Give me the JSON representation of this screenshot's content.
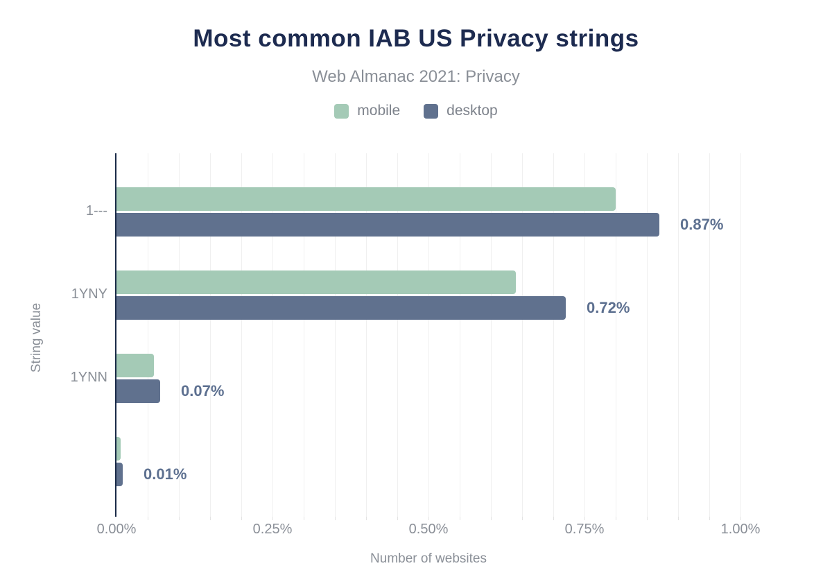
{
  "header": {
    "title": "Most common IAB US Privacy strings",
    "subtitle": "Web Almanac 2021: Privacy"
  },
  "colors": {
    "title_text": "#1d2b50",
    "muted_text": "#8a8f97",
    "legend_text": "#7e838c",
    "data_label_text": "#5d7090",
    "axis_line": "#1a2a47",
    "gridline": "#f0f0f0",
    "tickmark": "#e3e3e3",
    "mobile": "#a4cab6",
    "desktop": "#60718e"
  },
  "chart_data": {
    "type": "bar",
    "orientation": "horizontal",
    "title": "Most common IAB US Privacy strings",
    "subtitle": "Web Almanac 2021: Privacy",
    "categories": [
      "1---",
      "1YNY",
      "1YNN",
      ""
    ],
    "series": [
      {
        "name": "mobile",
        "color": "#a4cab6",
        "values": [
          0.8,
          0.64,
          0.06,
          0.007
        ]
      },
      {
        "name": "desktop",
        "color": "#60718e",
        "values": [
          0.87,
          0.72,
          0.07,
          0.01
        ]
      }
    ],
    "data_labels": [
      "0.87%",
      "0.72%",
      "0.07%",
      "0.01%"
    ],
    "xlabel": "Number of websites",
    "ylabel": "String value",
    "xlim": [
      0,
      1.0
    ],
    "x_ticks": [
      {
        "value": 0.0,
        "label": "0.00%"
      },
      {
        "value": 0.25,
        "label": "0.25%"
      },
      {
        "value": 0.5,
        "label": "0.50%"
      },
      {
        "value": 0.75,
        "label": "0.75%"
      },
      {
        "value": 1.0,
        "label": "1.00%"
      }
    ],
    "minor_grid_step": 0.05,
    "grid": true,
    "legend_position": "top"
  }
}
